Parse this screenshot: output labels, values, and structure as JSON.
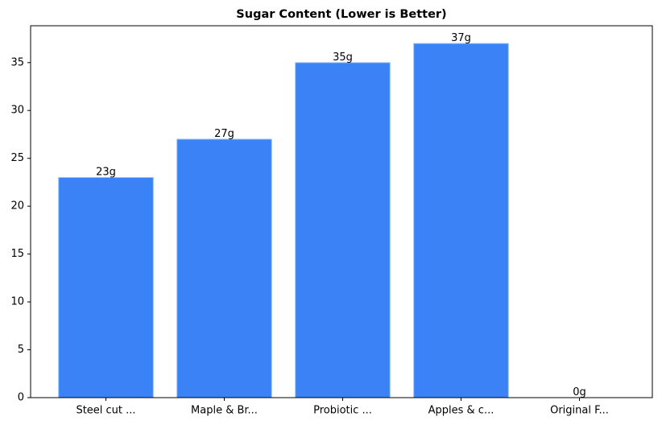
{
  "chart_data": {
    "type": "bar",
    "title": "Sugar Content (Lower is Better)",
    "categories": [
      "Steel cut ...",
      "Maple & Br...",
      "Probiotic ...",
      "Apples & c...",
      "Original F..."
    ],
    "values": [
      23,
      27,
      35,
      37,
      0
    ],
    "value_labels": [
      "23g",
      "27g",
      "35g",
      "37g",
      "0g"
    ],
    "color": "#3b82f6",
    "ylim": [
      0,
      38.85
    ],
    "yticks": [
      0,
      5,
      10,
      15,
      20,
      25,
      30,
      35
    ],
    "grid": false
  }
}
